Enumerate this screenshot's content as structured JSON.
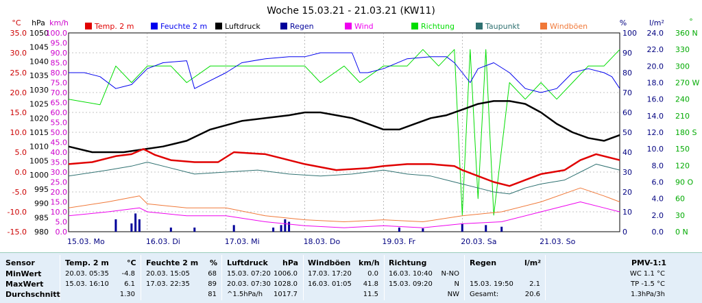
{
  "chart_data": {
    "type": "line",
    "title": "Woche 15.03.21 - 21.03.21 (KW11)",
    "legend": [
      "Temp. 2 m",
      "Feuchte  2 m",
      "Luftdruck",
      "Regen",
      "Wind",
      "Richtung",
      "Taupunkt",
      "Windböen"
    ],
    "legend_colors": [
      "#e00000",
      "#0000ee",
      "#000000",
      "#00009a",
      "#ee00ee",
      "#00dd00",
      "#2e7070",
      "#f07838"
    ],
    "axis_units": {
      "temp": "°C",
      "press": "hPa",
      "wind": "km/h",
      "hum": "%",
      "rain": "l/m²",
      "dir": "°"
    },
    "temp_ticks": [
      "35.0",
      "30.0",
      "25.0",
      "20.0",
      "15.0",
      "10.0",
      "5.0",
      "0.0",
      "-5.0",
      "-10.0",
      "-15.0"
    ],
    "press_ticks": [
      "1050",
      "1045",
      "1040",
      "1035",
      "1030",
      "1025",
      "1020",
      "1015",
      "1010",
      "1005",
      "1000",
      "995",
      "990",
      "985",
      "980"
    ],
    "wind_ticks": [
      "100.0",
      "95.0",
      "90.0",
      "85.0",
      "80.0",
      "75.0",
      "70.0",
      "65.0",
      "60.0",
      "55.0",
      "50.0",
      "45.0",
      "40.0",
      "35.0",
      "30.0",
      "25.0",
      "20.0",
      "15.0",
      "10.0",
      "5.0",
      "0.0"
    ],
    "hum_ticks": [
      "100",
      "90",
      "80",
      "70",
      "60",
      "50",
      "40",
      "30",
      "20",
      "10",
      "0"
    ],
    "rain_ticks": [
      "24.0",
      "22.0",
      "20.0",
      "18.0",
      "16.0",
      "14.0",
      "12.0",
      "10.0",
      "8.0",
      "6.0",
      "4.0",
      "2.0",
      "0.0"
    ],
    "dir_ticks": [
      "360 N",
      "330",
      "300",
      "270 W",
      "240",
      "210",
      "180 S",
      "150",
      "120",
      "90 O",
      "60",
      "30",
      "0 N"
    ],
    "x_labels": [
      "15.03.  Mo",
      "16.03.  Di",
      "17.03.  Mi",
      "18.03.  Do",
      "19.03.  Fr",
      "20.03.  Sa",
      "21.03.  So"
    ],
    "temp_range": [
      -15,
      35
    ],
    "x_range_days": [
      0,
      7
    ],
    "series": {
      "temp": [
        [
          0,
          2
        ],
        [
          0.3,
          2.5
        ],
        [
          0.6,
          4
        ],
        [
          0.8,
          4.5
        ],
        [
          0.95,
          5.8
        ],
        [
          1.1,
          4.3
        ],
        [
          1.3,
          3
        ],
        [
          1.6,
          2.5
        ],
        [
          1.9,
          2.5
        ],
        [
          2.1,
          5
        ],
        [
          2.5,
          4.5
        ],
        [
          2.7,
          3.5
        ],
        [
          3.0,
          2
        ],
        [
          3.4,
          0.5
        ],
        [
          3.8,
          1
        ],
        [
          4.0,
          1.5
        ],
        [
          4.3,
          2
        ],
        [
          4.6,
          2
        ],
        [
          4.9,
          1.5
        ],
        [
          5.0,
          0.5
        ],
        [
          5.2,
          -1
        ],
        [
          5.4,
          -2.5
        ],
        [
          5.6,
          -3.5
        ],
        [
          5.8,
          -2
        ],
        [
          6.0,
          -0.5
        ],
        [
          6.3,
          0.5
        ],
        [
          6.5,
          3
        ],
        [
          6.7,
          4.5
        ],
        [
          7.0,
          3
        ]
      ],
      "hum": [
        [
          0,
          80
        ],
        [
          0.2,
          80
        ],
        [
          0.4,
          78
        ],
        [
          0.6,
          72
        ],
        [
          0.8,
          74
        ],
        [
          1.0,
          82
        ],
        [
          1.2,
          85
        ],
        [
          1.5,
          86
        ],
        [
          1.6,
          72
        ],
        [
          1.8,
          76
        ],
        [
          2.0,
          80
        ],
        [
          2.2,
          85
        ],
        [
          2.5,
          87
        ],
        [
          2.8,
          88
        ],
        [
          3.0,
          88
        ],
        [
          3.2,
          90
        ],
        [
          3.5,
          90
        ],
        [
          3.6,
          90
        ],
        [
          3.7,
          80
        ],
        [
          3.8,
          80
        ],
        [
          4.0,
          82
        ],
        [
          4.3,
          87
        ],
        [
          4.6,
          88
        ],
        [
          4.8,
          88
        ],
        [
          4.9,
          85
        ],
        [
          5.0,
          80
        ],
        [
          5.1,
          75
        ],
        [
          5.2,
          82
        ],
        [
          5.4,
          85
        ],
        [
          5.6,
          80
        ],
        [
          5.8,
          72
        ],
        [
          6.0,
          70
        ],
        [
          6.2,
          72
        ],
        [
          6.4,
          80
        ],
        [
          6.6,
          82
        ],
        [
          6.8,
          80
        ],
        [
          6.9,
          78
        ],
        [
          7.0,
          72
        ]
      ],
      "press": [
        [
          0,
          1010
        ],
        [
          0.3,
          1008
        ],
        [
          0.7,
          1008
        ],
        [
          0.95,
          1009
        ],
        [
          1.2,
          1010
        ],
        [
          1.5,
          1012
        ],
        [
          1.8,
          1016
        ],
        [
          2.2,
          1019
        ],
        [
          2.5,
          1020
        ],
        [
          2.8,
          1021
        ],
        [
          3.0,
          1022
        ],
        [
          3.2,
          1022
        ],
        [
          3.4,
          1021
        ],
        [
          3.6,
          1020
        ],
        [
          3.8,
          1018
        ],
        [
          4.0,
          1016
        ],
        [
          4.2,
          1016
        ],
        [
          4.4,
          1018
        ],
        [
          4.6,
          1020
        ],
        [
          4.8,
          1021
        ],
        [
          5.0,
          1023
        ],
        [
          5.2,
          1025
        ],
        [
          5.4,
          1026
        ],
        [
          5.6,
          1026
        ],
        [
          5.8,
          1025
        ],
        [
          6.0,
          1022
        ],
        [
          6.2,
          1018
        ],
        [
          6.4,
          1015
        ],
        [
          6.6,
          1013
        ],
        [
          6.8,
          1012
        ],
        [
          7.0,
          1014
        ]
      ],
      "dewpoint": [
        [
          0,
          -1
        ],
        [
          0.5,
          0.5
        ],
        [
          0.8,
          1.5
        ],
        [
          1.0,
          2.5
        ],
        [
          1.3,
          1
        ],
        [
          1.6,
          -0.5
        ],
        [
          2.0,
          0
        ],
        [
          2.4,
          0.5
        ],
        [
          2.8,
          -0.5
        ],
        [
          3.2,
          -1
        ],
        [
          3.6,
          -0.5
        ],
        [
          3.8,
          0
        ],
        [
          4.0,
          0.5
        ],
        [
          4.3,
          -0.5
        ],
        [
          4.6,
          -1
        ],
        [
          4.9,
          -2.5
        ],
        [
          5.2,
          -4
        ],
        [
          5.4,
          -5
        ],
        [
          5.6,
          -5.5
        ],
        [
          5.8,
          -4
        ],
        [
          6.0,
          -3
        ],
        [
          6.3,
          -2
        ],
        [
          6.5,
          0
        ],
        [
          6.7,
          2
        ],
        [
          7.0,
          0.5
        ]
      ],
      "wind": [
        [
          0,
          8
        ],
        [
          0.5,
          10
        ],
        [
          0.9,
          12
        ],
        [
          1.0,
          10
        ],
        [
          1.5,
          8
        ],
        [
          2.0,
          8
        ],
        [
          2.5,
          5
        ],
        [
          3.0,
          3
        ],
        [
          3.5,
          2
        ],
        [
          4.0,
          3
        ],
        [
          4.5,
          2
        ],
        [
          5.0,
          4
        ],
        [
          5.5,
          5
        ],
        [
          6.0,
          10
        ],
        [
          6.5,
          15
        ],
        [
          6.8,
          12
        ],
        [
          7.0,
          10
        ]
      ],
      "gusts": [
        [
          0,
          12
        ],
        [
          0.5,
          15
        ],
        [
          0.9,
          18
        ],
        [
          1.0,
          14
        ],
        [
          1.5,
          12
        ],
        [
          2.0,
          12
        ],
        [
          2.5,
          8
        ],
        [
          3.0,
          6
        ],
        [
          3.5,
          5
        ],
        [
          4.0,
          6
        ],
        [
          4.5,
          5
        ],
        [
          5.0,
          8
        ],
        [
          5.5,
          10
        ],
        [
          6.0,
          15
        ],
        [
          6.5,
          22
        ],
        [
          6.8,
          18
        ],
        [
          7.0,
          15
        ]
      ],
      "direction": [
        [
          0,
          240
        ],
        [
          0.4,
          230
        ],
        [
          0.6,
          300
        ],
        [
          0.8,
          270
        ],
        [
          1.0,
          300
        ],
        [
          1.3,
          300
        ],
        [
          1.5,
          270
        ],
        [
          1.8,
          300
        ],
        [
          2.2,
          300
        ],
        [
          2.6,
          300
        ],
        [
          3.0,
          300
        ],
        [
          3.2,
          270
        ],
        [
          3.5,
          300
        ],
        [
          3.7,
          270
        ],
        [
          4.0,
          300
        ],
        [
          4.3,
          300
        ],
        [
          4.5,
          330
        ],
        [
          4.7,
          300
        ],
        [
          4.9,
          330
        ],
        [
          5.0,
          30
        ],
        [
          5.1,
          330
        ],
        [
          5.2,
          60
        ],
        [
          5.3,
          330
        ],
        [
          5.4,
          30
        ],
        [
          5.6,
          270
        ],
        [
          5.8,
          240
        ],
        [
          6.0,
          270
        ],
        [
          6.2,
          240
        ],
        [
          6.4,
          270
        ],
        [
          6.6,
          300
        ],
        [
          6.8,
          300
        ],
        [
          7.0,
          330
        ]
      ],
      "rain_bars": [
        [
          0.6,
          1.5
        ],
        [
          0.8,
          1.0
        ],
        [
          0.85,
          2.2
        ],
        [
          0.9,
          1.5
        ],
        [
          1.3,
          0.5
        ],
        [
          1.6,
          0.5
        ],
        [
          2.1,
          0.8
        ],
        [
          2.6,
          0.5
        ],
        [
          2.7,
          0.8
        ],
        [
          2.75,
          1.5
        ],
        [
          2.8,
          1.2
        ],
        [
          4.2,
          0.5
        ],
        [
          4.5,
          0.4
        ],
        [
          5.0,
          1.0
        ],
        [
          5.3,
          0.8
        ],
        [
          5.5,
          0.6
        ]
      ]
    }
  },
  "stats": {
    "header": {
      "sensor": "Sensor",
      "temp": "Temp. 2 m",
      "temp_unit": "°C",
      "hum": "Feuchte  2 m",
      "hum_unit": "%",
      "press": "Luftdruck",
      "press_unit": "hPa",
      "gust": "Windböen",
      "gust_unit": "km/h",
      "dir": "Richtung",
      "rain": "Regen",
      "rain_unit": "l/m²",
      "pmv": "PMV-1:1"
    },
    "rows": [
      {
        "label": "MinWert",
        "temp_time": "20.03.  05:35",
        "temp_val": "-4.8",
        "hum_time": "20.03.  15:05",
        "hum_val": "68",
        "press_time": "15.03.  07:20",
        "press_val": "1006.0",
        "gust_time": "17.03.  17:20",
        "gust_val": "0.0",
        "dir_time": "16.03.  10:40",
        "dir_val": "N-NO",
        "rain_time": "",
        "rain_val": "",
        "pmv": "WC 1.1 °C"
      },
      {
        "label": "MaxWert",
        "temp_time": "15.03.  16:10",
        "temp_val": "6.1",
        "hum_time": "17.03.  22:35",
        "hum_val": "89",
        "press_time": "20.03.  07:30",
        "press_val": "1028.0",
        "gust_time": "16.03.  01:05",
        "gust_val": "41.8",
        "dir_time": "15.03.  09:20",
        "dir_val": "N",
        "rain_time": "15.03.  19:50",
        "rain_val": "2.1",
        "pmv": "TP -1.5 °C"
      },
      {
        "label": "Durchschnitt",
        "temp_time": "",
        "temp_val": "1.30",
        "hum_time": "",
        "hum_val": "81",
        "press_time": "^1.5hPa/h",
        "press_val": "1017.7",
        "gust_time": "",
        "gust_val": "11.5",
        "dir_time": "",
        "dir_val": "NW",
        "rain_time": "Gesamt:",
        "rain_val": "20.6",
        "pmv": "1.3hPa/3h"
      }
    ]
  }
}
